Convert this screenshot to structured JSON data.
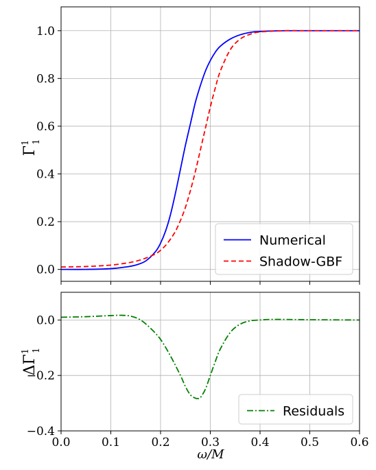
{
  "chart_data": [
    {
      "type": "line",
      "panel": "top",
      "ylabel": "Γ",
      "ylabel_sup": "1",
      "ylabel_sub": "1",
      "xlim": [
        0.0,
        0.6
      ],
      "ylim": [
        -0.05,
        1.1
      ],
      "yticks": [
        "0.0",
        "0.2",
        "0.4",
        "0.6",
        "0.8",
        "1.0"
      ],
      "ytick_values": [
        0.0,
        0.2,
        0.4,
        0.6,
        0.8,
        1.0
      ],
      "grid": true,
      "legend": "lower-right",
      "series": [
        {
          "name": "Numerical",
          "color": "#0000ff",
          "style": "solid",
          "x": [
            0.0,
            0.05,
            0.1,
            0.13,
            0.15,
            0.17,
            0.19,
            0.2,
            0.21,
            0.22,
            0.23,
            0.24,
            0.25,
            0.26,
            0.27,
            0.28,
            0.29,
            0.3,
            0.31,
            0.32,
            0.34,
            0.36,
            0.38,
            0.4,
            0.45,
            0.5,
            0.6
          ],
          "y": [
            0.0,
            0.0,
            0.003,
            0.01,
            0.018,
            0.035,
            0.075,
            0.11,
            0.16,
            0.23,
            0.32,
            0.42,
            0.52,
            0.61,
            0.7,
            0.77,
            0.83,
            0.875,
            0.91,
            0.935,
            0.965,
            0.983,
            0.993,
            0.997,
            1.0,
            1.0,
            1.0
          ]
        },
        {
          "name": "Shadow-GBF",
          "color": "#ff0000",
          "style": "dashed",
          "x": [
            0.0,
            0.05,
            0.1,
            0.13,
            0.15,
            0.17,
            0.19,
            0.2,
            0.21,
            0.22,
            0.23,
            0.24,
            0.25,
            0.26,
            0.27,
            0.28,
            0.29,
            0.3,
            0.31,
            0.32,
            0.34,
            0.36,
            0.38,
            0.4,
            0.45,
            0.5,
            0.6
          ],
          "y": [
            0.01,
            0.012,
            0.018,
            0.026,
            0.034,
            0.047,
            0.065,
            0.08,
            0.1,
            0.127,
            0.16,
            0.205,
            0.26,
            0.33,
            0.41,
            0.5,
            0.59,
            0.68,
            0.76,
            0.83,
            0.92,
            0.965,
            0.985,
            0.995,
            1.0,
            1.0,
            1.0
          ]
        }
      ]
    },
    {
      "type": "line",
      "panel": "bottom",
      "ylabel": "ΔΓ",
      "ylabel_sup": "1",
      "ylabel_sub": "1",
      "xlabel": "ω/M",
      "xlim": [
        0.0,
        0.6
      ],
      "ylim": [
        -0.4,
        0.1
      ],
      "yticks": [
        "0.0",
        "−0.2",
        "−0.4"
      ],
      "ytick_values": [
        0.0,
        -0.2,
        -0.4
      ],
      "xticks": [
        "0.0",
        "0.1",
        "0.2",
        "0.3",
        "0.4",
        "0.5",
        "0.6"
      ],
      "xtick_values": [
        0.0,
        0.1,
        0.2,
        0.3,
        0.4,
        0.5,
        0.6
      ],
      "grid": true,
      "legend": "lower-right",
      "series": [
        {
          "name": "Residuals",
          "color": "#008000",
          "style": "dashdot",
          "x": [
            0.0,
            0.05,
            0.1,
            0.12,
            0.14,
            0.16,
            0.18,
            0.2,
            0.22,
            0.24,
            0.25,
            0.26,
            0.27,
            0.275,
            0.28,
            0.29,
            0.3,
            0.31,
            0.32,
            0.34,
            0.36,
            0.38,
            0.4,
            0.42,
            0.45,
            0.5,
            0.6
          ],
          "y": [
            0.01,
            0.012,
            0.016,
            0.017,
            0.014,
            0.0,
            -0.03,
            -0.07,
            -0.13,
            -0.2,
            -0.24,
            -0.27,
            -0.282,
            -0.283,
            -0.28,
            -0.25,
            -0.2,
            -0.15,
            -0.105,
            -0.045,
            -0.015,
            -0.003,
            0.0,
            0.002,
            0.002,
            0.001,
            0.0
          ]
        }
      ]
    }
  ]
}
